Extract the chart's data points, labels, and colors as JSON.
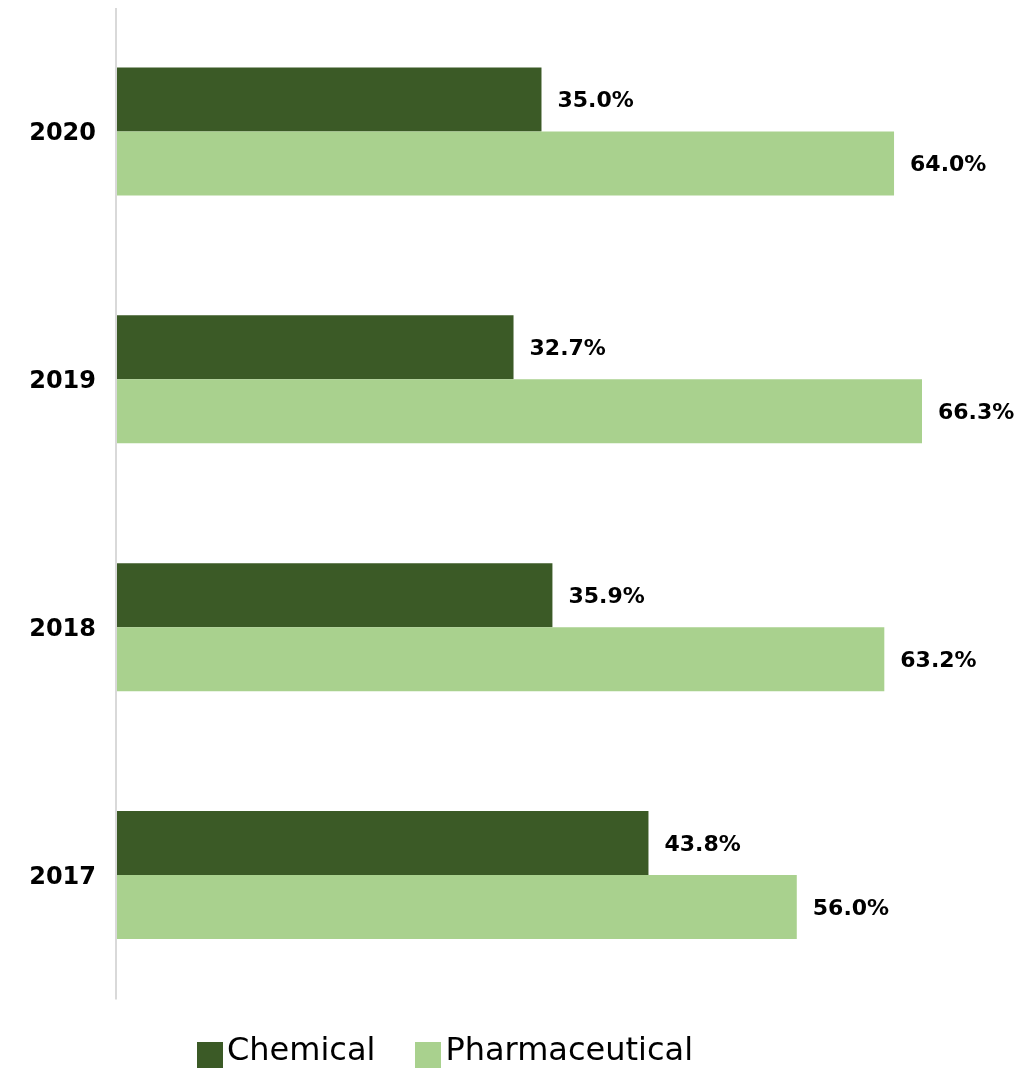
{
  "chart_data": {
    "type": "bar",
    "orientation": "horizontal",
    "categories": [
      "2020",
      "2019",
      "2018",
      "2017"
    ],
    "series": [
      {
        "name": "Chemical",
        "color": "#3b5a26",
        "values": [
          35.0,
          32.7,
          35.9,
          43.8
        ],
        "value_labels": [
          "35.0%",
          "32.7%",
          "35.9%",
          "43.8%"
        ]
      },
      {
        "name": "Pharmaceutical",
        "color": "#a9d18e",
        "values": [
          64.0,
          66.3,
          63.2,
          56.0
        ],
        "value_labels": [
          "64.0%",
          "66.3%",
          "63.2%",
          "56.0%"
        ]
      }
    ],
    "legend": "bottom",
    "grid": false
  }
}
